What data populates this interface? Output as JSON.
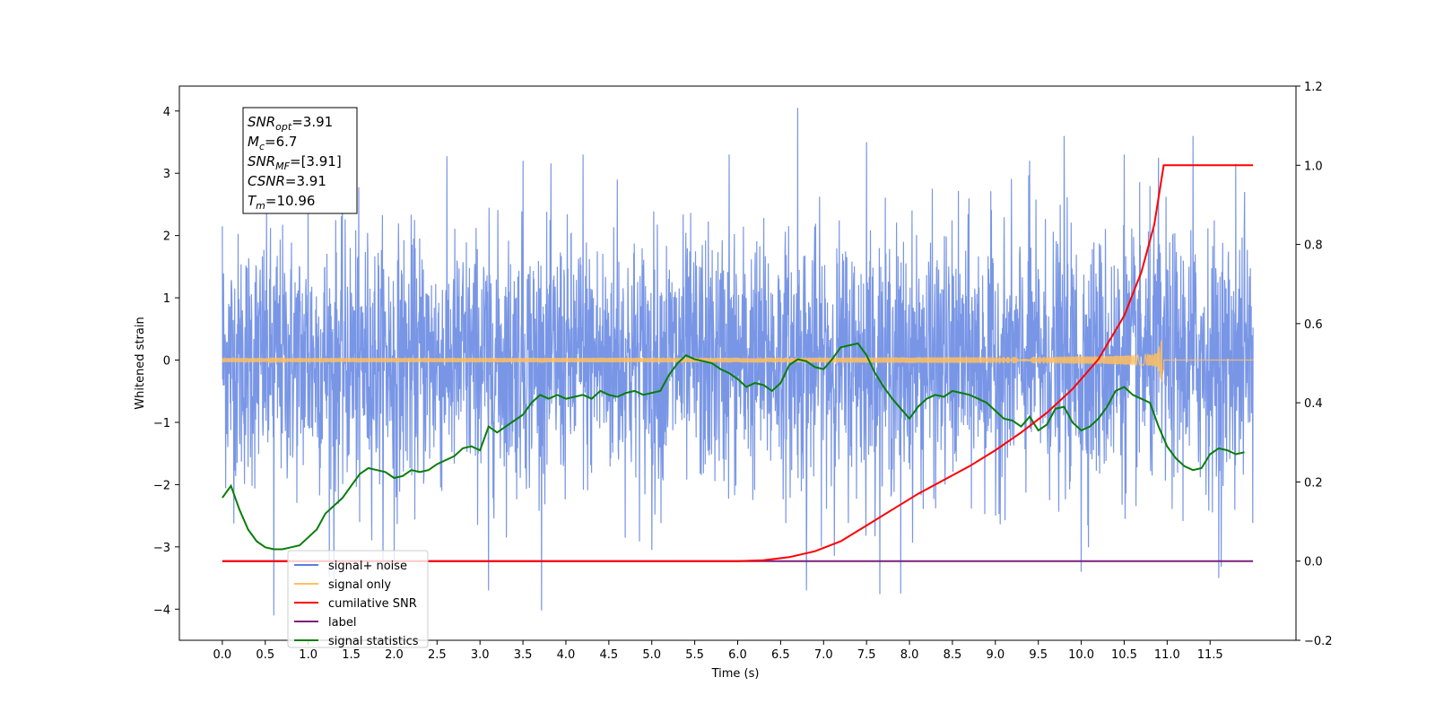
{
  "chart_data": {
    "type": "line",
    "title": "",
    "xlabel": "Time (s)",
    "ylabel": "Whitened strain",
    "y2label": "",
    "xlim": [
      -0.5,
      12.5
    ],
    "ylim": [
      -4.5,
      4.4
    ],
    "y2lim": [
      -0.2,
      1.2
    ],
    "x_ticks": [
      "0.0",
      "0.5",
      "1.0",
      "1.5",
      "2.0",
      "2.5",
      "3.0",
      "3.5",
      "4.0",
      "4.5",
      "5.0",
      "5.5",
      "6.0",
      "6.5",
      "7.0",
      "7.5",
      "8.0",
      "8.5",
      "9.0",
      "9.5",
      "10.0",
      "10.5",
      "11.0",
      "11.5"
    ],
    "y_ticks": [
      "4",
      "3",
      "2",
      "1",
      "0",
      "−1",
      "−2",
      "−3",
      "−4"
    ],
    "y2_ticks": [
      "1.2",
      "1.0",
      "0.8",
      "0.6",
      "0.4",
      "0.2",
      "0.0",
      "−0.2"
    ],
    "grid": false,
    "legend_position": "lower-left",
    "annotation": [
      {
        "base": "SNR",
        "sub": "opt",
        "value": "=3.91"
      },
      {
        "base": "M",
        "sub": "c",
        "value": "=6.7"
      },
      {
        "base": "SNR",
        "sub": "MF",
        "value": "=[3.91]"
      },
      {
        "base": "CSNR",
        "sub": "",
        "value": "=3.91"
      },
      {
        "base": "T",
        "sub": "m",
        "value": "=10.96"
      }
    ],
    "series": [
      {
        "name": "signal+ noise",
        "color": "#5b7fe0",
        "axis": "left",
        "kind": "noise",
        "x_range": [
          0.0,
          12.0
        ],
        "sigma": 1.0,
        "spikes": [
          [
            0.0,
            2.15
          ],
          [
            1.0,
            2.6
          ],
          [
            1.6,
            -2.6
          ],
          [
            2.0,
            -3.3
          ],
          [
            3.1,
            -3.7
          ],
          [
            3.5,
            3.2
          ],
          [
            4.2,
            3.3
          ],
          [
            4.6,
            2.9
          ],
          [
            5.0,
            -3.05
          ],
          [
            5.9,
            3.3
          ],
          [
            6.7,
            4.05
          ],
          [
            6.8,
            -3.7
          ],
          [
            7.5,
            3.5
          ],
          [
            7.9,
            -3.75
          ],
          [
            9.4,
            3.2
          ],
          [
            9.8,
            3.6
          ],
          [
            10.0,
            -3.4
          ],
          [
            10.5,
            3.3
          ],
          [
            10.9,
            3.25
          ],
          [
            11.3,
            3.6
          ],
          [
            11.6,
            -3.5
          ],
          [
            11.8,
            3.15
          ],
          [
            11.9,
            2.7
          ],
          [
            0.6,
            -4.1
          ],
          [
            1.3,
            -3.6
          ]
        ]
      },
      {
        "name": "signal only",
        "color": "#ffbf5f",
        "axis": "left",
        "kind": "chirp",
        "x_range": [
          0.0,
          12.0
        ],
        "merger": 10.96,
        "peak_amp": 0.45
      },
      {
        "name": "cumilative SNR",
        "color": "#ff0000",
        "axis": "right",
        "x": [
          0.0,
          5.0,
          6.0,
          6.3,
          6.6,
          6.9,
          7.2,
          7.5,
          7.8,
          8.1,
          8.4,
          8.7,
          9.0,
          9.3,
          9.6,
          9.9,
          10.2,
          10.5,
          10.7,
          10.85,
          10.96,
          12.0
        ],
        "y": [
          0.0,
          0.0,
          0.0,
          0.002,
          0.01,
          0.025,
          0.05,
          0.09,
          0.13,
          0.17,
          0.205,
          0.24,
          0.28,
          0.325,
          0.375,
          0.435,
          0.51,
          0.62,
          0.73,
          0.85,
          1.0,
          1.0
        ]
      },
      {
        "name": "label",
        "color": "#7b1f7b",
        "axis": "right",
        "x": [
          0.0,
          12.0
        ],
        "y": [
          0.0,
          0.0
        ]
      },
      {
        "name": "signal statistics",
        "color": "#0a7d0a",
        "axis": "right",
        "x": [
          0.0,
          0.1,
          0.2,
          0.3,
          0.4,
          0.5,
          0.6,
          0.7,
          0.8,
          0.9,
          1.0,
          1.1,
          1.2,
          1.3,
          1.4,
          1.5,
          1.6,
          1.7,
          1.8,
          1.9,
          2.0,
          2.1,
          2.2,
          2.3,
          2.4,
          2.5,
          2.6,
          2.7,
          2.8,
          2.9,
          3.0,
          3.1,
          3.2,
          3.3,
          3.4,
          3.5,
          3.6,
          3.7,
          3.8,
          3.9,
          4.0,
          4.1,
          4.2,
          4.3,
          4.4,
          4.5,
          4.6,
          4.7,
          4.8,
          4.9,
          5.0,
          5.1,
          5.2,
          5.3,
          5.4,
          5.5,
          5.6,
          5.7,
          5.8,
          5.9,
          6.0,
          6.1,
          6.2,
          6.3,
          6.4,
          6.5,
          6.6,
          6.7,
          6.8,
          6.9,
          7.0,
          7.1,
          7.2,
          7.3,
          7.4,
          7.5,
          7.6,
          7.7,
          7.8,
          7.9,
          8.0,
          8.1,
          8.2,
          8.3,
          8.4,
          8.5,
          8.6,
          8.7,
          8.8,
          8.9,
          9.0,
          9.1,
          9.2,
          9.3,
          9.4,
          9.5,
          9.6,
          9.7,
          9.8,
          9.9,
          10.0,
          10.1,
          10.2,
          10.3,
          10.4,
          10.5,
          10.6,
          10.7,
          10.8,
          10.9,
          11.0,
          11.1,
          11.2,
          11.3,
          11.4,
          11.5,
          11.6,
          11.7,
          11.8,
          11.9
        ],
        "y": [
          0.16,
          0.19,
          0.13,
          0.08,
          0.05,
          0.035,
          0.03,
          0.03,
          0.035,
          0.04,
          0.06,
          0.08,
          0.12,
          0.14,
          0.16,
          0.19,
          0.22,
          0.235,
          0.23,
          0.225,
          0.21,
          0.215,
          0.23,
          0.225,
          0.23,
          0.245,
          0.255,
          0.265,
          0.285,
          0.29,
          0.28,
          0.34,
          0.325,
          0.34,
          0.355,
          0.37,
          0.4,
          0.42,
          0.41,
          0.42,
          0.41,
          0.415,
          0.42,
          0.41,
          0.43,
          0.42,
          0.415,
          0.425,
          0.43,
          0.42,
          0.425,
          0.43,
          0.47,
          0.5,
          0.52,
          0.51,
          0.505,
          0.5,
          0.485,
          0.475,
          0.46,
          0.44,
          0.45,
          0.445,
          0.43,
          0.45,
          0.495,
          0.51,
          0.505,
          0.49,
          0.485,
          0.51,
          0.54,
          0.545,
          0.55,
          0.52,
          0.475,
          0.44,
          0.41,
          0.385,
          0.36,
          0.39,
          0.41,
          0.42,
          0.415,
          0.43,
          0.425,
          0.42,
          0.41,
          0.4,
          0.38,
          0.36,
          0.355,
          0.34,
          0.365,
          0.33,
          0.345,
          0.385,
          0.39,
          0.35,
          0.33,
          0.34,
          0.36,
          0.39,
          0.43,
          0.44,
          0.42,
          0.41,
          0.4,
          0.34,
          0.29,
          0.26,
          0.24,
          0.23,
          0.235,
          0.27,
          0.285,
          0.28,
          0.27,
          0.275
        ]
      }
    ]
  }
}
